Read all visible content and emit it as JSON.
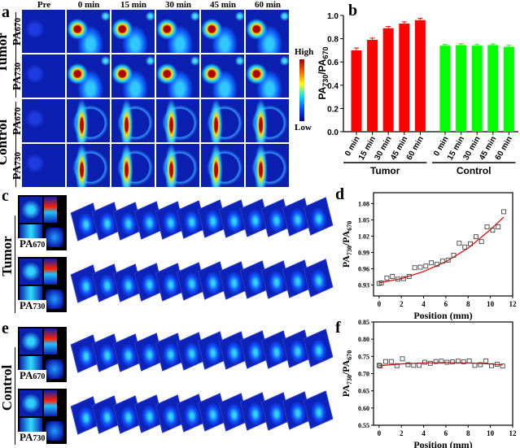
{
  "panel_labels": {
    "a": "a",
    "b": "b",
    "c": "c",
    "d": "d",
    "e": "e",
    "f": "f"
  },
  "panel_a": {
    "columns": [
      "Pre",
      "0 min",
      "15 min",
      "30 min",
      "45 min",
      "60 min"
    ],
    "groups": [
      "Tumor",
      "Control"
    ],
    "rows": [
      {
        "group": "Tumor",
        "channel": "PA",
        "sub": "670"
      },
      {
        "group": "Tumor",
        "channel": "PA",
        "sub": "730"
      },
      {
        "group": "Control",
        "channel": "PA",
        "sub": "670"
      },
      {
        "group": "Control",
        "channel": "PA",
        "sub": "730"
      }
    ],
    "colorbar": {
      "high": "High",
      "low": "Low",
      "colors": [
        "#00008f",
        "#0050ff",
        "#00e0ff",
        "#ffff00",
        "#ff6000",
        "#9f0000"
      ]
    }
  },
  "panel_c": {
    "group": "Tumor",
    "rows": [
      {
        "channel": "PA",
        "sub": "670"
      },
      {
        "channel": "PA",
        "sub": "730"
      }
    ]
  },
  "panel_e": {
    "group": "Control",
    "rows": [
      {
        "channel": "PA",
        "sub": "670"
      },
      {
        "channel": "PA",
        "sub": "730"
      }
    ]
  },
  "chart_data": [
    {
      "id": "b",
      "type": "bar",
      "ylabel": "PA730/PA670",
      "ylabel_main": "PA",
      "ylabel_sub1": "730",
      "ylabel_sep": "/PA",
      "ylabel_sub2": "670",
      "ylim": [
        0,
        1.0
      ],
      "yticks": [
        "0.0",
        "0.2",
        "0.4",
        "0.6",
        "0.8",
        "1.0"
      ],
      "groups": [
        {
          "name": "Tumor",
          "color": "#ff0000",
          "categories": [
            "0 min",
            "15 min",
            "30 min",
            "45 min",
            "60 min"
          ],
          "values": [
            0.7,
            0.79,
            0.89,
            0.93,
            0.96
          ],
          "errors": [
            0.02,
            0.015,
            0.015,
            0.015,
            0.015
          ]
        },
        {
          "name": "Control",
          "color": "#00ff00",
          "categories": [
            "0 min",
            "15 min",
            "30 min",
            "45 min",
            "60 min"
          ],
          "values": [
            0.74,
            0.745,
            0.74,
            0.745,
            0.73
          ],
          "errors": [
            0.01,
            0.012,
            0.01,
            0.01,
            0.012
          ]
        }
      ]
    },
    {
      "id": "d",
      "type": "scatter",
      "xlabel": "Position (mm)",
      "ylabel_main": "PA",
      "ylabel_sub1": "730",
      "ylabel_sep": "/PA",
      "ylabel_sub2": "670",
      "xlim": [
        -0.5,
        12
      ],
      "ylim": [
        0.91,
        1.1
      ],
      "xticks": [
        0,
        2,
        4,
        6,
        8,
        10,
        12
      ],
      "yticks": [
        "0.93",
        "0.96",
        "0.99",
        "1.02",
        "1.05",
        "1.08"
      ],
      "points": [
        [
          0,
          0.933
        ],
        [
          0.2,
          0.934
        ],
        [
          0.7,
          0.943
        ],
        [
          1.2,
          0.946
        ],
        [
          1.7,
          0.941
        ],
        [
          2.2,
          0.942
        ],
        [
          2.7,
          0.946
        ],
        [
          3.2,
          0.962
        ],
        [
          3.7,
          0.963
        ],
        [
          4.2,
          0.965
        ],
        [
          4.7,
          0.971
        ],
        [
          5.2,
          0.968
        ],
        [
          5.7,
          0.974
        ],
        [
          6.2,
          0.976
        ],
        [
          6.7,
          0.985
        ],
        [
          7.2,
          1.007
        ],
        [
          7.7,
          1.0
        ],
        [
          8.2,
          1.006
        ],
        [
          8.7,
          1.019
        ],
        [
          9.2,
          1.01
        ],
        [
          9.7,
          1.037
        ],
        [
          10.2,
          1.031
        ],
        [
          10.7,
          1.037
        ],
        [
          11.2,
          1.065
        ]
      ],
      "fit": [
        [
          0,
          0.934
        ],
        [
          2,
          0.942
        ],
        [
          4,
          0.955
        ],
        [
          6,
          0.973
        ],
        [
          8,
          0.998
        ],
        [
          10,
          1.032
        ],
        [
          11.2,
          1.055
        ]
      ],
      "fit_color": "#e00000"
    },
    {
      "id": "f",
      "type": "scatter",
      "xlabel": "Position (mm)",
      "ylabel_main": "PA",
      "ylabel_sub1": "730",
      "ylabel_sep": "/PA",
      "ylabel_sub2": "670",
      "xlim": [
        -0.5,
        12
      ],
      "ylim": [
        0.55,
        0.85
      ],
      "xticks": [
        0,
        2,
        4,
        6,
        8,
        10,
        12
      ],
      "yticks": [
        "0.55",
        "0.60",
        "0.65",
        "0.70",
        "0.75",
        "0.80",
        "0.85"
      ],
      "points": [
        [
          0,
          0.724
        ],
        [
          0.1,
          0.722
        ],
        [
          0.6,
          0.735
        ],
        [
          1.1,
          0.735
        ],
        [
          1.6,
          0.723
        ],
        [
          2.1,
          0.743
        ],
        [
          2.6,
          0.726
        ],
        [
          3.1,
          0.724
        ],
        [
          3.6,
          0.724
        ],
        [
          4.1,
          0.733
        ],
        [
          4.6,
          0.73
        ],
        [
          5.1,
          0.735
        ],
        [
          5.6,
          0.736
        ],
        [
          6.1,
          0.733
        ],
        [
          6.6,
          0.734
        ],
        [
          7.1,
          0.736
        ],
        [
          7.6,
          0.734
        ],
        [
          8.1,
          0.737
        ],
        [
          8.6,
          0.724
        ],
        [
          9.1,
          0.726
        ],
        [
          9.6,
          0.737
        ],
        [
          10.1,
          0.723
        ],
        [
          10.6,
          0.727
        ],
        [
          11.1,
          0.722
        ]
      ],
      "fit": [
        [
          0,
          0.723
        ],
        [
          2,
          0.728
        ],
        [
          4,
          0.731
        ],
        [
          6,
          0.732
        ],
        [
          8,
          0.731
        ],
        [
          10,
          0.728
        ],
        [
          11.1,
          0.725
        ]
      ],
      "fit_color": "#e00000"
    }
  ]
}
